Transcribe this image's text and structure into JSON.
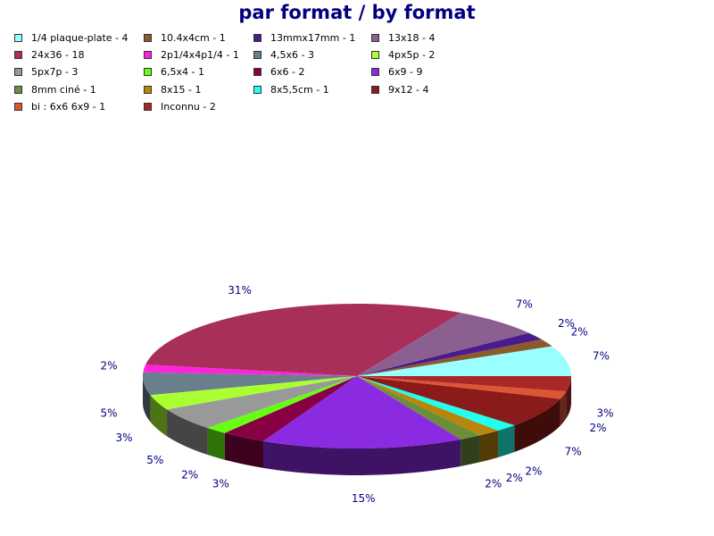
{
  "chart_data": {
    "type": "pie",
    "title": "par format / by format",
    "three_d": true,
    "legend_position": "top",
    "slices": [
      {
        "legend": "1/4 plaque-plate - 4",
        "label": "1/4 plaque-plate",
        "value": 4,
        "percent_label": "7%",
        "color": "#99ffff"
      },
      {
        "legend": "10.4x4cm - 1",
        "label": "10.4x4cm",
        "value": 1,
        "percent_label": "2%",
        "color": "#8b5a2b"
      },
      {
        "legend": "13mmx17mm - 1",
        "label": "13mmx17mm",
        "value": 1,
        "percent_label": "2%",
        "color": "#4b1a8c"
      },
      {
        "legend": "13x18 - 4",
        "label": "13x18",
        "value": 4,
        "percent_label": "7%",
        "color": "#8b6090"
      },
      {
        "legend": "24x36 - 18",
        "label": "24x36",
        "value": 18,
        "percent_label": "31%",
        "color": "#a82f5a"
      },
      {
        "legend": "2p1/4x4p1/4 - 1",
        "label": "2p1/4x4p1/4",
        "value": 1,
        "percent_label": "2%",
        "color": "#ff22dd"
      },
      {
        "legend": "4,5x6 - 3",
        "label": "4,5x6",
        "value": 3,
        "percent_label": "5%",
        "color": "#6a7f8c"
      },
      {
        "legend": "4px5p - 2",
        "label": "4px5p",
        "value": 2,
        "percent_label": "3%",
        "color": "#aaff33"
      },
      {
        "legend": "5px7p - 3",
        "label": "5px7p",
        "value": 3,
        "percent_label": "5%",
        "color": "#999999"
      },
      {
        "legend": "6,5x4 - 1",
        "label": "6,5x4",
        "value": 1,
        "percent_label": "2%",
        "color": "#66ff11"
      },
      {
        "legend": "6x6 - 2",
        "label": "6x6",
        "value": 2,
        "percent_label": "3%",
        "color": "#880044"
      },
      {
        "legend": "6x9 - 9",
        "label": "6x9",
        "value": 9,
        "percent_label": "15%",
        "color": "#8a2be2"
      },
      {
        "legend": "8mm ciné - 1",
        "label": "8mm ciné",
        "value": 1,
        "percent_label": "2%",
        "color": "#6b8e3a"
      },
      {
        "legend": "8x15 - 1",
        "label": "8x15",
        "value": 1,
        "percent_label": "2%",
        "color": "#b8860b"
      },
      {
        "legend": "8x5,5cm - 1",
        "label": "8x5,5cm",
        "value": 1,
        "percent_label": "2%",
        "color": "#22ffee"
      },
      {
        "legend": "9x12 - 4",
        "label": "9x12",
        "value": 4,
        "percent_label": "7%",
        "color": "#8b1a1a"
      },
      {
        "legend": "bi : 6x6 6x9 - 1",
        "label": "bi : 6x6 6x9",
        "value": 1,
        "percent_label": "2%",
        "color": "#dd5533"
      },
      {
        "legend": "Inconnu - 2",
        "label": "Inconnu",
        "value": 2,
        "percent_label": "3%",
        "color": "#a82828"
      }
    ]
  }
}
